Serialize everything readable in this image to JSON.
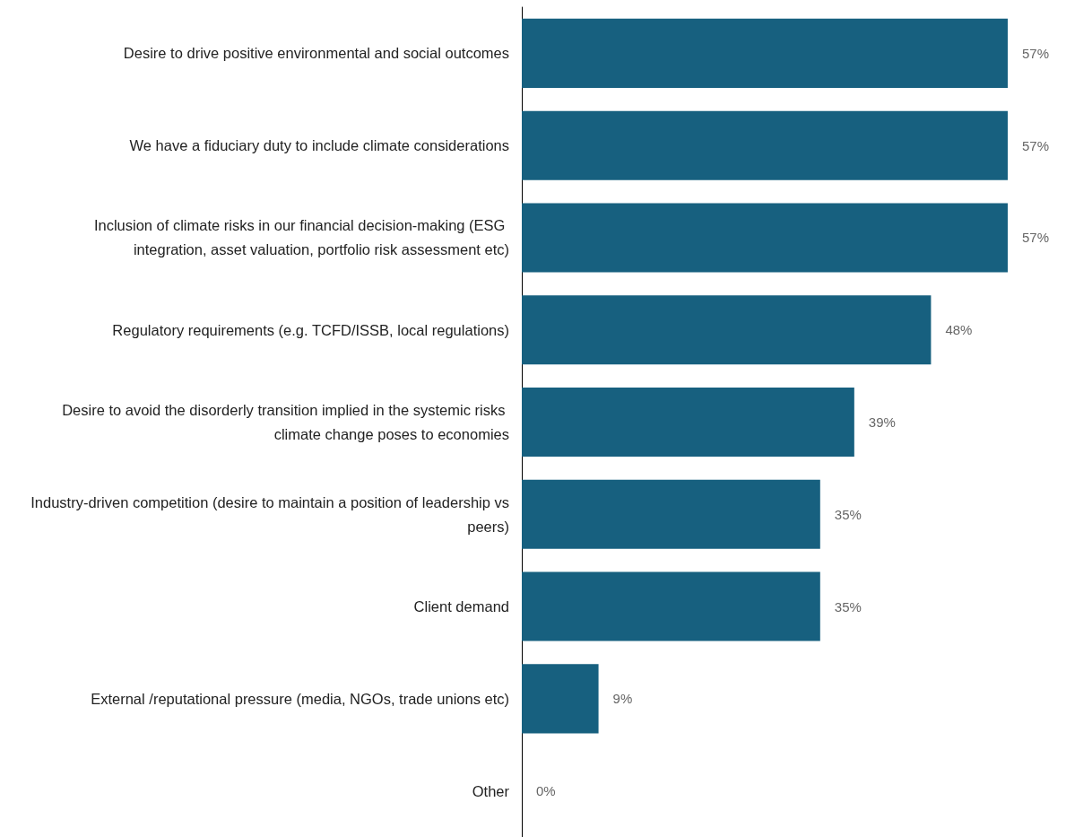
{
  "chart_data": {
    "type": "bar",
    "orientation": "horizontal",
    "categories": [
      "Desire to drive positive environmental and social outcomes",
      "We have a fiduciary duty to include climate considerations",
      "Inclusion of climate risks in our financial decision-making (ESG integration, asset valuation, portfolio risk assessment etc)",
      "Regulatory requirements (e.g. TCFD/ISSB, local regulations)",
      "Desire to avoid the disorderly transition implied in the systemic risks climate change poses to economies",
      "Industry-driven competition (desire to maintain a position of leadership vs peers)",
      "Client demand",
      "External /reputational pressure (media, NGOs, trade unions etc)",
      "Other"
    ],
    "values": [
      57,
      57,
      57,
      48,
      39,
      35,
      35,
      9,
      0
    ],
    "value_labels": [
      "57%",
      "57%",
      "57%",
      "48%",
      "39%",
      "35%",
      "35%",
      "9%",
      "0%"
    ],
    "color": "#17607f"
  }
}
